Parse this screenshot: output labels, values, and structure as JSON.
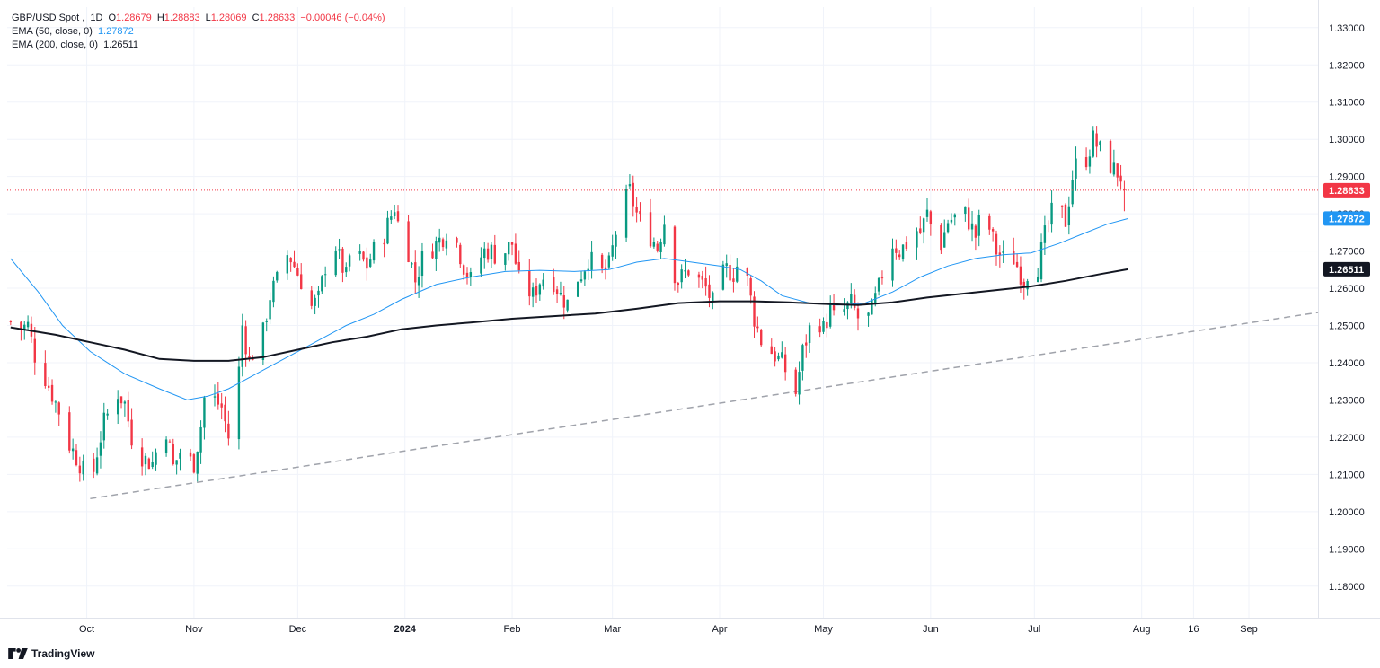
{
  "chart_data": {
    "type": "candlestick",
    "symbol": "GBP/USD Spot",
    "timeframe": "1D",
    "ohlc": {
      "o_label": "O",
      "open": "1.28679",
      "h_label": "H",
      "high": "1.28883",
      "l_label": "L",
      "low": "1.28069",
      "c_label": "C",
      "close": "1.28633",
      "change": "−0.00046 (−0.04%)"
    },
    "indicators": [
      {
        "name": "EMA (50, close, 0)",
        "value": "1.27872",
        "color": "#2196f3"
      },
      {
        "name": "EMA (200, close, 0)",
        "value": "1.26511",
        "color": "#131722"
      }
    ],
    "last_price_label": "1.28633",
    "ylim": [
      1.1715,
      1.3355
    ],
    "y_ticks": [
      "1.33000",
      "1.32000",
      "1.31000",
      "1.30000",
      "1.29000",
      "1.28000",
      "1.27000",
      "1.26000",
      "1.25000",
      "1.24000",
      "1.23000",
      "1.22000",
      "1.21000",
      "1.20000",
      "1.19000",
      "1.18000"
    ],
    "x_ticks": [
      {
        "label": "Oct",
        "day": 19
      },
      {
        "label": "Nov",
        "day": 50
      },
      {
        "label": "Dec",
        "day": 80
      },
      {
        "label": "2024",
        "day": 111,
        "bold": true
      },
      {
        "label": "Feb",
        "day": 142
      },
      {
        "label": "Mar",
        "day": 171
      },
      {
        "label": "Apr",
        "day": 202
      },
      {
        "label": "May",
        "day": 232
      },
      {
        "label": "Jun",
        "day": 263
      },
      {
        "label": "Jul",
        "day": 293
      },
      {
        "label": "Aug",
        "day": 324
      },
      {
        "label": "16",
        "day": 339
      },
      {
        "label": "Sep",
        "day": 355
      }
    ],
    "x_domain": [
      -4,
      375
    ],
    "waypoints": [
      [
        -3,
        1.251
      ],
      [
        -1,
        1.249
      ],
      [
        2,
        1.25
      ],
      [
        4,
        1.242
      ],
      [
        7,
        1.236
      ],
      [
        11,
        1.227
      ],
      [
        14,
        1.218
      ],
      [
        17,
        1.213
      ],
      [
        18,
        1.211
      ],
      [
        20,
        1.206
      ],
      [
        22,
        1.216
      ],
      [
        24,
        1.224
      ],
      [
        26,
        1.228
      ],
      [
        28,
        1.232
      ],
      [
        30,
        1.229
      ],
      [
        32,
        1.22
      ],
      [
        34,
        1.216
      ],
      [
        36,
        1.214
      ],
      [
        38,
        1.213
      ],
      [
        40,
        1.219
      ],
      [
        42,
        1.222
      ],
      [
        44,
        1.212
      ],
      [
        46,
        1.216
      ],
      [
        48,
        1.214
      ],
      [
        50,
        1.213
      ],
      [
        52,
        1.223
      ],
      [
        54,
        1.238
      ],
      [
        56,
        1.23
      ],
      [
        58,
        1.228
      ],
      [
        60,
        1.22
      ],
      [
        62,
        1.226
      ],
      [
        64,
        1.25
      ],
      [
        66,
        1.24
      ],
      [
        68,
        1.245
      ],
      [
        70,
        1.248
      ],
      [
        72,
        1.258
      ],
      [
        74,
        1.262
      ],
      [
        76,
        1.27
      ],
      [
        78,
        1.268
      ],
      [
        80,
        1.264
      ],
      [
        82,
        1.26
      ],
      [
        84,
        1.255
      ],
      [
        86,
        1.257
      ],
      [
        88,
        1.266
      ],
      [
        90,
        1.275
      ],
      [
        92,
        1.268
      ],
      [
        94,
        1.263
      ],
      [
        96,
        1.274
      ],
      [
        98,
        1.268
      ],
      [
        100,
        1.266
      ],
      [
        102,
        1.27
      ],
      [
        104,
        1.272
      ],
      [
        106,
        1.277
      ],
      [
        108,
        1.282
      ],
      [
        110,
        1.273
      ],
      [
        112,
        1.27
      ],
      [
        114,
        1.262
      ],
      [
        116,
        1.268
      ],
      [
        118,
        1.27
      ],
      [
        120,
        1.272
      ],
      [
        122,
        1.274
      ],
      [
        124,
        1.277
      ],
      [
        126,
        1.272
      ],
      [
        128,
        1.266
      ],
      [
        130,
        1.262
      ],
      [
        132,
        1.267
      ],
      [
        134,
        1.27
      ],
      [
        136,
        1.27
      ],
      [
        138,
        1.268
      ],
      [
        140,
        1.27
      ],
      [
        142,
        1.272
      ],
      [
        144,
        1.262
      ],
      [
        146,
        1.26
      ],
      [
        148,
        1.258
      ],
      [
        150,
        1.262
      ],
      [
        152,
        1.264
      ],
      [
        154,
        1.262
      ],
      [
        156,
        1.258
      ],
      [
        158,
        1.256
      ],
      [
        160,
        1.262
      ],
      [
        162,
        1.264
      ],
      [
        164,
        1.268
      ],
      [
        166,
        1.266
      ],
      [
        168,
        1.264
      ],
      [
        170,
        1.266
      ],
      [
        172,
        1.275
      ],
      [
        174,
        1.282
      ],
      [
        176,
        1.286
      ],
      [
        178,
        1.28
      ],
      [
        180,
        1.276
      ],
      [
        182,
        1.274
      ],
      [
        184,
        1.271
      ],
      [
        186,
        1.278
      ],
      [
        188,
        1.266
      ],
      [
        190,
        1.262
      ],
      [
        192,
        1.264
      ],
      [
        194,
        1.266
      ],
      [
        196,
        1.262
      ],
      [
        198,
        1.26
      ],
      [
        200,
        1.256
      ],
      [
        202,
        1.262
      ],
      [
        204,
        1.265
      ],
      [
        206,
        1.264
      ],
      [
        208,
        1.268
      ],
      [
        210,
        1.262
      ],
      [
        212,
        1.252
      ],
      [
        214,
        1.246
      ],
      [
        216,
        1.244
      ],
      [
        218,
        1.242
      ],
      [
        220,
        1.24
      ],
      [
        222,
        1.236
      ],
      [
        224,
        1.232
      ],
      [
        226,
        1.243
      ],
      [
        228,
        1.249
      ],
      [
        230,
        1.253
      ],
      [
        232,
        1.249
      ],
      [
        234,
        1.254
      ],
      [
        236,
        1.25
      ],
      [
        238,
        1.254
      ],
      [
        240,
        1.256
      ],
      [
        242,
        1.252
      ],
      [
        244,
        1.25
      ],
      [
        246,
        1.254
      ],
      [
        248,
        1.26
      ],
      [
        250,
        1.268
      ],
      [
        252,
        1.272
      ],
      [
        254,
        1.27
      ],
      [
        256,
        1.272
      ],
      [
        258,
        1.276
      ],
      [
        260,
        1.275
      ],
      [
        262,
        1.28
      ],
      [
        264,
        1.274
      ],
      [
        266,
        1.272
      ],
      [
        268,
        1.278
      ],
      [
        270,
        1.279
      ],
      [
        272,
        1.282
      ],
      [
        274,
        1.278
      ],
      [
        276,
        1.274
      ],
      [
        278,
        1.281
      ],
      [
        280,
        1.276
      ],
      [
        282,
        1.27
      ],
      [
        284,
        1.268
      ],
      [
        286,
        1.27
      ],
      [
        288,
        1.266
      ],
      [
        290,
        1.262
      ],
      [
        292,
        1.267
      ],
      [
        294,
        1.266
      ],
      [
        296,
        1.274
      ],
      [
        298,
        1.28
      ],
      [
        300,
        1.282
      ],
      [
        302,
        1.278
      ],
      [
        304,
        1.29
      ],
      [
        306,
        1.296
      ],
      [
        308,
        1.295
      ],
      [
        310,
        1.3
      ],
      [
        312,
        1.297
      ],
      [
        314,
        1.294
      ],
      [
        316,
        1.292
      ],
      [
        318,
        1.29
      ],
      [
        320,
        1.287
      ]
    ],
    "last_day": 320,
    "ema50_points": [
      [
        -3,
        1.268
      ],
      [
        5,
        1.259
      ],
      [
        12,
        1.25
      ],
      [
        20,
        1.243
      ],
      [
        30,
        1.237
      ],
      [
        40,
        1.233
      ],
      [
        48,
        1.23
      ],
      [
        54,
        1.231
      ],
      [
        60,
        1.233
      ],
      [
        66,
        1.236
      ],
      [
        72,
        1.239
      ],
      [
        78,
        1.242
      ],
      [
        86,
        1.246
      ],
      [
        94,
        1.25
      ],
      [
        102,
        1.253
      ],
      [
        110,
        1.257
      ],
      [
        120,
        1.261
      ],
      [
        130,
        1.263
      ],
      [
        140,
        1.2645
      ],
      [
        150,
        1.2648
      ],
      [
        160,
        1.2645
      ],
      [
        170,
        1.265
      ],
      [
        178,
        1.267
      ],
      [
        186,
        1.268
      ],
      [
        194,
        1.267
      ],
      [
        202,
        1.266
      ],
      [
        208,
        1.265
      ],
      [
        214,
        1.262
      ],
      [
        220,
        1.258
      ],
      [
        228,
        1.256
      ],
      [
        236,
        1.2555
      ],
      [
        244,
        1.256
      ],
      [
        252,
        1.259
      ],
      [
        260,
        1.263
      ],
      [
        268,
        1.266
      ],
      [
        276,
        1.268
      ],
      [
        284,
        1.269
      ],
      [
        292,
        1.2695
      ],
      [
        300,
        1.272
      ],
      [
        308,
        1.275
      ],
      [
        314,
        1.2772
      ],
      [
        320,
        1.2787
      ]
    ],
    "ema200_points": [
      [
        -3,
        1.2495
      ],
      [
        10,
        1.2475
      ],
      [
        20,
        1.2455
      ],
      [
        30,
        1.2435
      ],
      [
        40,
        1.241
      ],
      [
        50,
        1.2405
      ],
      [
        60,
        1.2405
      ],
      [
        70,
        1.2415
      ],
      [
        80,
        1.2435
      ],
      [
        90,
        1.2455
      ],
      [
        100,
        1.247
      ],
      [
        110,
        1.249
      ],
      [
        120,
        1.25
      ],
      [
        130,
        1.2508
      ],
      [
        142,
        1.2518
      ],
      [
        154,
        1.2525
      ],
      [
        166,
        1.2532
      ],
      [
        178,
        1.2545
      ],
      [
        190,
        1.256
      ],
      [
        202,
        1.2565
      ],
      [
        212,
        1.2565
      ],
      [
        222,
        1.2562
      ],
      [
        232,
        1.2558
      ],
      [
        242,
        1.2555
      ],
      [
        252,
        1.2562
      ],
      [
        262,
        1.2575
      ],
      [
        272,
        1.2585
      ],
      [
        282,
        1.2595
      ],
      [
        292,
        1.2605
      ],
      [
        302,
        1.262
      ],
      [
        312,
        1.2638
      ],
      [
        320,
        1.2651
      ]
    ],
    "trendline": {
      "start": [
        20,
        1.2035
      ],
      "end": [
        375,
        1.2535
      ]
    },
    "colors": {
      "up": "#089981",
      "down": "#f23645",
      "ema50": "#2196f3",
      "ema200": "#131722",
      "trendline": "#a0a3ab",
      "grid": "#f0f3fa",
      "text": "#131722"
    }
  },
  "branding": {
    "name": "TradingView"
  }
}
